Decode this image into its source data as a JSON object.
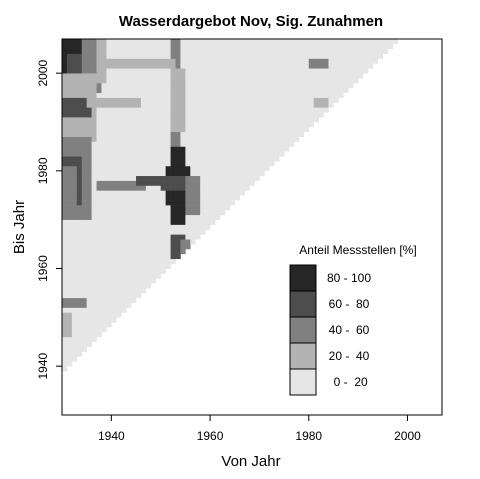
{
  "chart_data": {
    "type": "heatmap",
    "title": "Wasserdargebot Nov, Sig. Zunahmen",
    "xlabel": "Von Jahr",
    "ylabel": "Bis Jahr",
    "xlim": [
      1930,
      2007
    ],
    "ylim": [
      1930,
      2007
    ],
    "x_ticks": [
      1940,
      1960,
      1980,
      2000
    ],
    "y_ticks": [
      1940,
      1960,
      1980,
      2000
    ],
    "colors": {
      "c0": "#e6e6e6",
      "c1": "#b3b3b3",
      "c2": "#808080",
      "c3": "#4d4d4d",
      "c4": "#262626",
      "frame": "#000000"
    },
    "legend": {
      "title": "Anteil Messstellen [%]",
      "position": "bottom-right",
      "entries": [
        {
          "label": "80 - 100",
          "color": "#262626"
        },
        {
          "label": "60 -  80",
          "color": "#4d4d4d"
        },
        {
          "label": "40 -  60",
          "color": "#808080"
        },
        {
          "label": "20 -  40",
          "color": "#b3b3b3"
        },
        {
          "label": " 0 -  20",
          "color": "#e6e6e6"
        }
      ]
    },
    "domain": {
      "description_rule": "cells exist for Bis Jahr >= Von Jahr + 9",
      "from_start": 1930,
      "to_end": 2006,
      "min_window": 9
    },
    "patches": [
      {
        "from": [
          1930,
          1934
        ],
        "to": [
          1999,
          2006
        ],
        "class": 4
      },
      {
        "from": [
          1931,
          1935
        ],
        "to": [
          1998,
          2003
        ],
        "class": 3
      },
      {
        "from": [
          1934,
          1937
        ],
        "to": [
          1996,
          2006
        ],
        "class": 2
      },
      {
        "from": [
          1937,
          1938
        ],
        "to": [
          1998,
          2006
        ],
        "class": 1
      },
      {
        "from": [
          1930,
          1936
        ],
        "to": [
          1986,
          1999
        ],
        "class": 1
      },
      {
        "from": [
          1930,
          1935
        ],
        "to": [
          1970,
          1986
        ],
        "class": 2
      },
      {
        "from": [
          1930,
          1933
        ],
        "to": [
          1973,
          1982
        ],
        "class": 3
      },
      {
        "from": [
          1930,
          1932
        ],
        "to": [
          1971,
          1980
        ],
        "class": 2
      },
      {
        "from": [
          1930,
          1935
        ],
        "to": [
          1991,
          1994
        ],
        "class": 3
      },
      {
        "from": [
          1935,
          1945
        ],
        "to": [
          1993,
          1994
        ],
        "class": 1
      },
      {
        "from": [
          1952,
          1953
        ],
        "to": [
          1973,
          2006
        ],
        "class": 2
      },
      {
        "from": [
          1952,
          1954
        ],
        "to": [
          1988,
          2000
        ],
        "class": 1
      },
      {
        "from": [
          1953,
          1954
        ],
        "to": [
          1975,
          1982
        ],
        "class": 3
      },
      {
        "from": [
          1952,
          1954
        ],
        "to": [
          1969,
          1984
        ],
        "class": 4
      },
      {
        "from": [
          1951,
          1955
        ],
        "to": [
          1973,
          1980
        ],
        "class": 4
      },
      {
        "from": [
          1950,
          1956
        ],
        "to": [
          1976,
          1978
        ],
        "class": 3
      },
      {
        "from": [
          1955,
          1957
        ],
        "to": [
          1971,
          1978
        ],
        "class": 2
      },
      {
        "from": [
          1952,
          1954
        ],
        "to": [
          1962,
          1966
        ],
        "class": 3
      },
      {
        "from": [
          1954,
          1955
        ],
        "to": [
          1963,
          1965
        ],
        "class": 2
      },
      {
        "from": [
          1937,
          1946
        ],
        "to": [
          1976,
          1977
        ],
        "class": 2
      },
      {
        "from": [
          1945,
          1949
        ],
        "to": [
          1977,
          1978
        ],
        "class": 3
      },
      {
        "from": [
          1930,
          1934
        ],
        "to": [
          1952,
          1953
        ],
        "class": 2
      },
      {
        "from": [
          1980,
          1983
        ],
        "to": [
          2001,
          2002
        ],
        "class": 2
      },
      {
        "from": [
          1981,
          1983
        ],
        "to": [
          1993,
          1994
        ],
        "class": 1
      },
      {
        "from": [
          1939,
          1952
        ],
        "to": [
          2001,
          2002
        ],
        "class": 1
      },
      {
        "from": [
          1930,
          1931
        ],
        "to": [
          1946,
          1950
        ],
        "class": 1
      }
    ]
  }
}
